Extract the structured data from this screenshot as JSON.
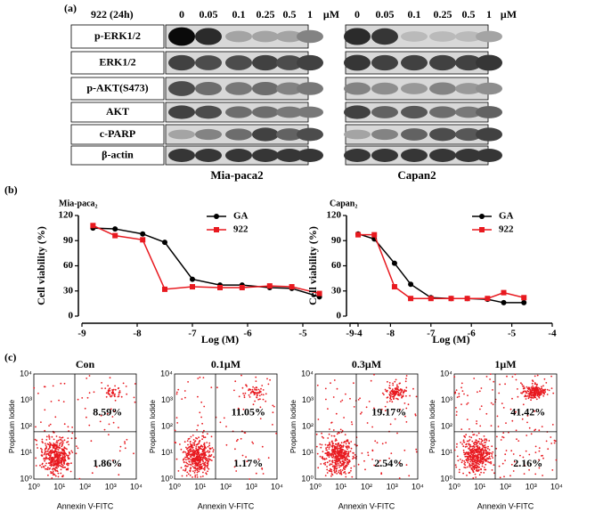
{
  "blot": {
    "label": "(a)",
    "treatment": "922 (24h)",
    "doses": [
      "0",
      "0.05",
      "0.1",
      "0.25",
      "0.5",
      "1"
    ],
    "unit": "μM",
    "proteins": [
      "p-ERK1/2",
      "ERK1/2",
      "p-AKT(S473)",
      "AKT",
      "c-PARP",
      "β-actin"
    ],
    "cell_lines": [
      "Mia-paca2",
      "Capan2"
    ]
  },
  "panel_b_label": "(b)",
  "chart_data": [
    {
      "type": "line",
      "title": "Mia-paca₂",
      "xlabel": "Log (M)",
      "ylabel": "Cell viability (%)",
      "xlim": [
        -9,
        -4
      ],
      "xticks": [
        -9,
        -8,
        -7,
        -6,
        -5,
        -4
      ],
      "ylim": [
        0,
        120
      ],
      "yticks": [
        0,
        30,
        60,
        90,
        120
      ],
      "x": [
        -8.8,
        -8.4,
        -7.9,
        -7.5,
        -7.0,
        -6.5,
        -6.1,
        -5.6,
        -5.2,
        -4.7
      ],
      "series": [
        {
          "name": "GA",
          "color": "#000000",
          "values": [
            105,
            104,
            98,
            88,
            44,
            37,
            37,
            34,
            33,
            23
          ]
        },
        {
          "name": "922",
          "color": "#e8191f",
          "values": [
            108,
            96,
            91,
            32,
            35,
            34,
            34,
            36,
            35,
            27
          ]
        }
      ]
    },
    {
      "type": "line",
      "title": "Capan₂",
      "xlabel": "Log (M)",
      "ylabel": "Cell viability (%)",
      "xlim": [
        -9,
        -4
      ],
      "xticks": [
        -9,
        -8,
        -7,
        -6,
        -5,
        -4
      ],
      "ylim": [
        0,
        120
      ],
      "yticks": [
        0,
        30,
        60,
        90,
        120
      ],
      "x": [
        -8.8,
        -8.4,
        -7.9,
        -7.5,
        -7.0,
        -6.5,
        -6.1,
        -5.6,
        -5.2,
        -4.7
      ],
      "series": [
        {
          "name": "GA",
          "color": "#000000",
          "values": [
            98,
            92,
            63,
            38,
            22,
            21,
            21,
            20,
            16,
            16
          ]
        },
        {
          "name": "922",
          "color": "#e8191f",
          "values": [
            97,
            97,
            35,
            21,
            21,
            21,
            21,
            21,
            28,
            22
          ]
        }
      ]
    }
  ],
  "flow": {
    "label": "(c)",
    "xlabel": "Annexin V-FITC",
    "ylabel": "Propidium Iodide",
    "ticks": [
      "10⁰",
      "10¹",
      "10²",
      "10³",
      "10⁴"
    ],
    "plots": [
      {
        "title": "Con",
        "upper_right": "8.59%",
        "lower_right": "1.86%"
      },
      {
        "title": "0.1μM",
        "upper_right": "11.05%",
        "lower_right": "1.17%"
      },
      {
        "title": "0.3μM",
        "upper_right": "19.17%",
        "lower_right": "2.54%"
      },
      {
        "title": "1μM",
        "upper_right": "41.42%",
        "lower_right": "2.16%"
      }
    ]
  }
}
